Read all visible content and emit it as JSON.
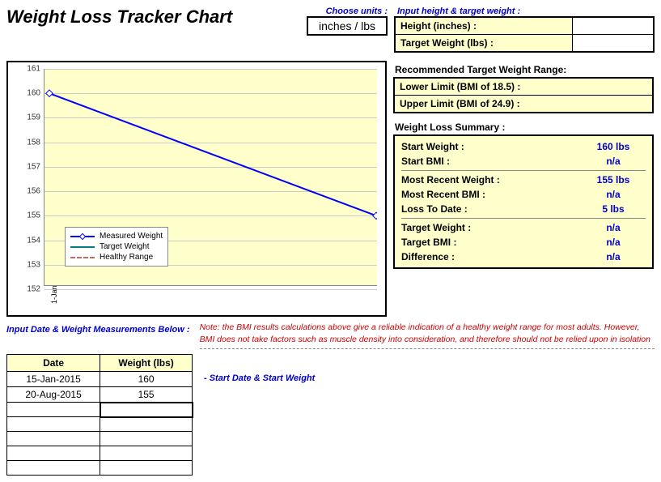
{
  "title": "Weight Loss Tracker Chart",
  "units": {
    "prompt": "Choose units :",
    "value": "inches / lbs"
  },
  "height_target": {
    "prompt": "Input height & target weight :",
    "height_label": "Height (inches) :",
    "height_value": "",
    "target_label": "Target Weight (lbs) :",
    "target_value": ""
  },
  "range": {
    "header": "Recommended Target Weight Range:",
    "lower_label": "Lower Limit (BMI of 18.5) :",
    "upper_label": "Upper Limit (BMI of 24.9) :"
  },
  "summary": {
    "header": "Weight Loss Summary :",
    "rows": [
      {
        "label": "Start Weight :",
        "value": "160 lbs"
      },
      {
        "label": "Start BMI :",
        "value": "n/a"
      },
      {
        "label": "Most Recent Weight :",
        "value": "155 lbs"
      },
      {
        "label": "Most Recent BMI :",
        "value": "n/a"
      },
      {
        "label": "Loss To Date :",
        "value": "5 lbs"
      },
      {
        "label": "Target Weight :",
        "value": "n/a"
      },
      {
        "label": "Target BMI :",
        "value": "n/a"
      },
      {
        "label": "Difference :",
        "value": "n/a"
      }
    ],
    "dividers_after": [
      1,
      4
    ]
  },
  "chart": {
    "type": "line",
    "ylim": [
      152,
      161
    ],
    "ytick_step": 1,
    "background_color": "#ffffcc",
    "grid_color": "#cccccc",
    "xticks": [
      "1-Jan"
    ],
    "series": {
      "x": [
        0,
        1
      ],
      "y": [
        160,
        155
      ],
      "color": "#0000ff",
      "line_width": 2,
      "marker": "diamond"
    },
    "legend": [
      {
        "label": "Measured Weight",
        "color": "#0000ff",
        "style": "solid",
        "marker": true
      },
      {
        "label": "Target Weight",
        "color": "#008080",
        "style": "solid",
        "marker": false
      },
      {
        "label": "Healthy Range",
        "color": "#cc6666",
        "style": "dashed",
        "marker": false
      }
    ],
    "label_fontsize": 10
  },
  "input_table": {
    "prompt": "Input Date & Weight Measurements Below :",
    "columns": [
      "Date",
      "Weight (lbs)"
    ],
    "rows": [
      [
        "15-Jan-2015",
        "160"
      ],
      [
        "20-Aug-2015",
        "155"
      ],
      [
        "",
        ""
      ],
      [
        "",
        ""
      ],
      [
        "",
        ""
      ],
      [
        "",
        ""
      ],
      [
        "",
        ""
      ]
    ],
    "active_cell": [
      2,
      1
    ]
  },
  "note": "Note: the BMI results calculations above give a reliable indication of a healthy weight range for most adults. However, BMI does not take factors such as muscle density into consideration, and therefore should not be relied upon in isolation",
  "start_hint": "- Start Date & Start Weight",
  "colors": {
    "highlight_bg": "#ffffcc",
    "link_blue": "#0000cc",
    "note_red": "#cc0000"
  }
}
